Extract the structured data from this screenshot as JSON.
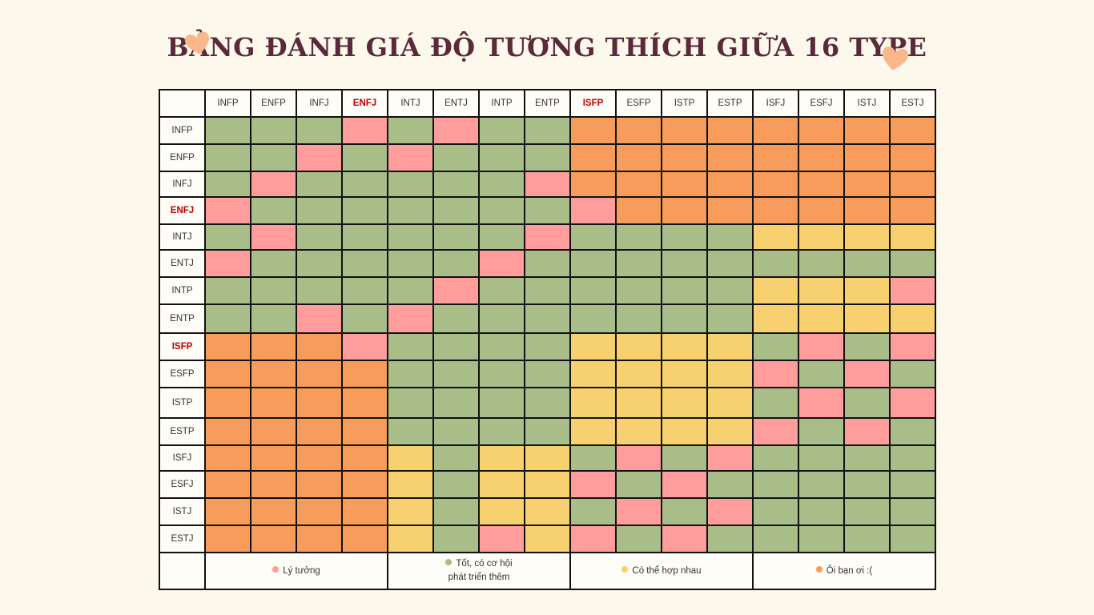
{
  "title": "BẢNG ĐÁNH GIÁ ĐỘ TƯƠNG THÍCH GIỮA 16 TYPE",
  "colors": {
    "ideal": "#ff9d9d",
    "good": "#a8bd88",
    "maybe": "#f7d070",
    "bad": "#f89c5c",
    "heart": "#f9b88c",
    "highlight_label": "#c00000"
  },
  "chart_data": {
    "type": "heatmap",
    "title": "BẢNG ĐÁNH GIÁ ĐỘ TƯƠNG THÍCH GIỮA 16 TYPE",
    "x": [
      "INFP",
      "ENFP",
      "INFJ",
      "ENFJ",
      "INTJ",
      "ENTJ",
      "INTP",
      "ENTP",
      "ISFP",
      "ESFP",
      "ISTP",
      "ESTP",
      "ISFJ",
      "ESFJ",
      "ISTJ",
      "ESTJ"
    ],
    "y": [
      "INFP",
      "ENFP",
      "INFJ",
      "ENFJ",
      "INTJ",
      "ENTJ",
      "INTP",
      "ENTP",
      "ISFP",
      "ESFP",
      "ISTP",
      "ESTP",
      "ISFJ",
      "ESFJ",
      "ISTJ",
      "ESTJ"
    ],
    "highlighted": [
      "ENFJ",
      "ISFP"
    ],
    "values": [
      [
        "G",
        "G",
        "G",
        "P",
        "G",
        "P",
        "G",
        "G",
        "O",
        "O",
        "O",
        "O",
        "O",
        "O",
        "O",
        "O"
      ],
      [
        "G",
        "G",
        "P",
        "G",
        "P",
        "G",
        "G",
        "G",
        "O",
        "O",
        "O",
        "O",
        "O",
        "O",
        "O",
        "O"
      ],
      [
        "G",
        "P",
        "G",
        "G",
        "G",
        "G",
        "G",
        "P",
        "O",
        "O",
        "O",
        "O",
        "O",
        "O",
        "O",
        "O"
      ],
      [
        "P",
        "G",
        "G",
        "G",
        "G",
        "G",
        "G",
        "G",
        "P",
        "O",
        "O",
        "O",
        "O",
        "O",
        "O",
        "O"
      ],
      [
        "G",
        "P",
        "G",
        "G",
        "G",
        "G",
        "G",
        "P",
        "G",
        "G",
        "G",
        "G",
        "Y",
        "Y",
        "Y",
        "Y"
      ],
      [
        "P",
        "G",
        "G",
        "G",
        "G",
        "G",
        "P",
        "G",
        "G",
        "G",
        "G",
        "G",
        "G",
        "G",
        "G",
        "G"
      ],
      [
        "G",
        "G",
        "G",
        "G",
        "G",
        "P",
        "G",
        "G",
        "G",
        "G",
        "G",
        "G",
        "Y",
        "Y",
        "Y",
        "P"
      ],
      [
        "G",
        "G",
        "P",
        "G",
        "P",
        "G",
        "G",
        "G",
        "G",
        "G",
        "G",
        "G",
        "Y",
        "Y",
        "Y",
        "Y"
      ],
      [
        "O",
        "O",
        "O",
        "P",
        "G",
        "G",
        "G",
        "G",
        "Y",
        "Y",
        "Y",
        "Y",
        "G",
        "P",
        "G",
        "P"
      ],
      [
        "O",
        "O",
        "O",
        "O",
        "G",
        "G",
        "G",
        "G",
        "Y",
        "Y",
        "Y",
        "Y",
        "P",
        "G",
        "P",
        "G"
      ],
      [
        "O",
        "O",
        "O",
        "O",
        "G",
        "G",
        "G",
        "G",
        "Y",
        "Y",
        "Y",
        "Y",
        "G",
        "P",
        "G",
        "P"
      ],
      [
        "O",
        "O",
        "O",
        "O",
        "G",
        "G",
        "G",
        "G",
        "Y",
        "Y",
        "Y",
        "Y",
        "P",
        "G",
        "P",
        "G"
      ],
      [
        "O",
        "O",
        "O",
        "O",
        "Y",
        "G",
        "Y",
        "Y",
        "G",
        "P",
        "G",
        "P",
        "G",
        "G",
        "G",
        "G"
      ],
      [
        "O",
        "O",
        "O",
        "O",
        "Y",
        "G",
        "Y",
        "Y",
        "P",
        "G",
        "P",
        "G",
        "G",
        "G",
        "G",
        "G"
      ],
      [
        "O",
        "O",
        "O",
        "O",
        "Y",
        "G",
        "Y",
        "Y",
        "G",
        "P",
        "G",
        "P",
        "G",
        "G",
        "G",
        "G"
      ],
      [
        "O",
        "O",
        "O",
        "O",
        "Y",
        "G",
        "P",
        "Y",
        "P",
        "G",
        "P",
        "G",
        "G",
        "G",
        "G",
        "G"
      ]
    ],
    "legend": [
      {
        "key": "P",
        "label": "Lý tưởng"
      },
      {
        "key": "G",
        "label": "Tốt, có cơ hội phát triển thêm",
        "lines": [
          "Tốt, có cơ hội",
          "phát triển thêm"
        ]
      },
      {
        "key": "Y",
        "label": "Có thể hợp nhau"
      },
      {
        "key": "O",
        "label": "Ôi bạn ơi :("
      }
    ]
  }
}
